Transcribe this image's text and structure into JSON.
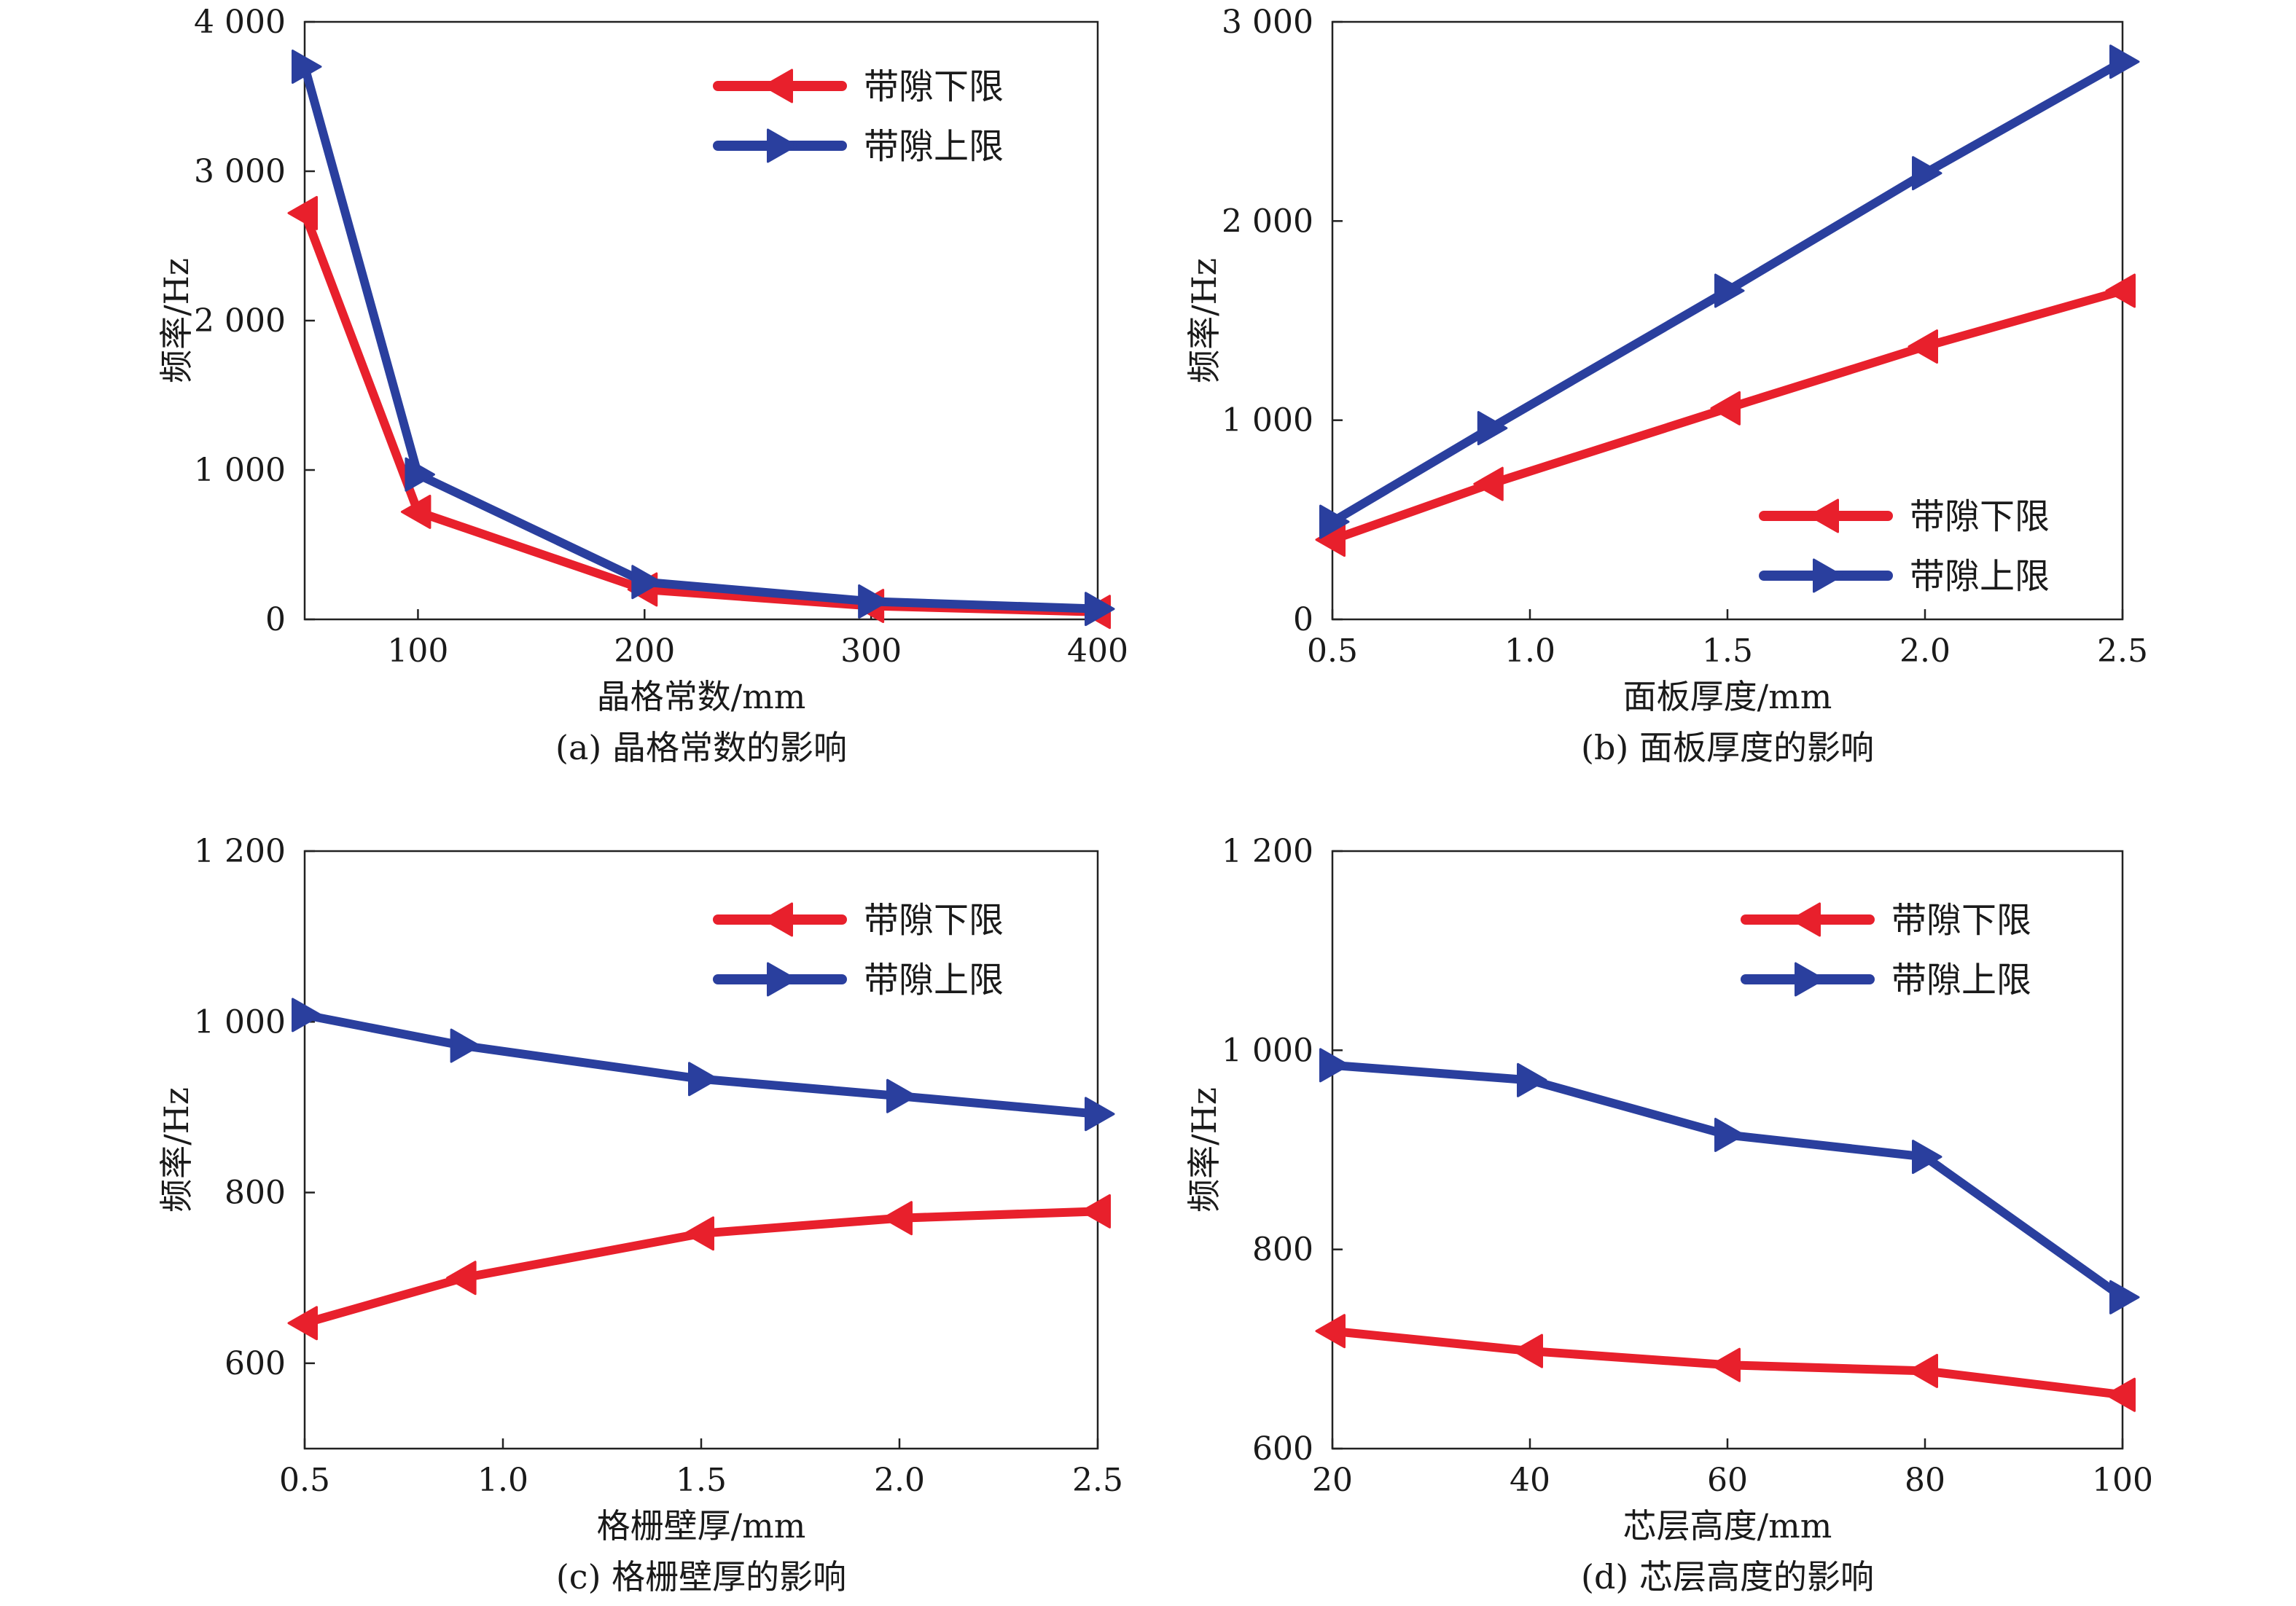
{
  "colors": {
    "lower": "#e8202c",
    "upper": "#2a3f9e",
    "axis": "#222222"
  },
  "chart_data": [
    {
      "type": "line",
      "caption": "(a) 晶格常数的影响",
      "xlabel": "晶格常数/mm",
      "ylabel": "频率/Hz",
      "xlim": [
        50,
        400
      ],
      "ylim": [
        0,
        4000
      ],
      "xticks": [
        100,
        200,
        300,
        400
      ],
      "xtick_labels": [
        "100",
        "200",
        "300",
        "400"
      ],
      "yticks": [
        0,
        1000,
        2000,
        3000,
        4000
      ],
      "ytick_labels": [
        "0",
        "1 000",
        "2 000",
        "3 000",
        "4 000"
      ],
      "legend_position": "top-right",
      "x": [
        50,
        100,
        200,
        300,
        400
      ],
      "series": [
        {
          "name": "带隙下限",
          "key": "lower",
          "marker": "left-triangle",
          "values": [
            2720,
            720,
            200,
            90,
            50
          ]
        },
        {
          "name": "带隙上限",
          "key": "upper",
          "marker": "right-triangle",
          "values": [
            3700,
            970,
            250,
            120,
            70
          ]
        }
      ]
    },
    {
      "type": "line",
      "caption": "(b) 面板厚度的影响",
      "xlabel": "面板厚度/mm",
      "ylabel": "频率/Hz",
      "xlim": [
        0.5,
        2.5
      ],
      "ylim": [
        0,
        3000
      ],
      "xticks": [
        0.5,
        1.0,
        1.5,
        2.0,
        2.5
      ],
      "xtick_labels": [
        "0.5",
        "1.0",
        "1.5",
        "2.0",
        "2.5"
      ],
      "yticks": [
        0,
        1000,
        2000,
        3000
      ],
      "ytick_labels": [
        "0",
        "1 000",
        "2 000",
        "3 000"
      ],
      "legend_position": "bottom-right",
      "x": [
        0.5,
        0.9,
        1.5,
        2.0,
        2.5
      ],
      "series": [
        {
          "name": "带隙下限",
          "key": "lower",
          "marker": "left-triangle",
          "values": [
            400,
            680,
            1060,
            1370,
            1650
          ]
        },
        {
          "name": "带隙上限",
          "key": "upper",
          "marker": "right-triangle",
          "values": [
            490,
            960,
            1650,
            2240,
            2800
          ]
        }
      ]
    },
    {
      "type": "line",
      "caption": "(c) 格栅壁厚的影响",
      "xlabel": "格栅壁厚/mm",
      "ylabel": "频率/Hz",
      "xlim": [
        0.5,
        2.5
      ],
      "ylim": [
        500,
        1200
      ],
      "xticks": [
        0.5,
        1.0,
        1.5,
        2.0,
        2.5
      ],
      "xtick_labels": [
        "0.5",
        "1.0",
        "1.5",
        "2.0",
        "2.5"
      ],
      "yticks": [
        600,
        800,
        1000,
        1200
      ],
      "ytick_labels": [
        "600",
        "800",
        "1 000",
        "1 200"
      ],
      "legend_position": "top-right",
      "x": [
        0.5,
        0.9,
        1.5,
        2.0,
        2.5
      ],
      "series": [
        {
          "name": "带隙下限",
          "key": "lower",
          "marker": "left-triangle",
          "values": [
            647,
            700,
            752,
            770,
            778
          ]
        },
        {
          "name": "带隙上限",
          "key": "upper",
          "marker": "right-triangle",
          "values": [
            1008,
            972,
            933,
            913,
            892
          ]
        }
      ]
    },
    {
      "type": "line",
      "caption": "(d) 芯层高度的影响",
      "xlabel": "芯层高度/mm",
      "ylabel": "频率/Hz",
      "xlim": [
        20,
        100
      ],
      "ylim": [
        600,
        1200
      ],
      "xticks": [
        20,
        40,
        60,
        80,
        100
      ],
      "xtick_labels": [
        "20",
        "40",
        "60",
        "80",
        "100"
      ],
      "yticks": [
        600,
        800,
        1000,
        1200
      ],
      "ytick_labels": [
        "600",
        "800",
        "1 000",
        "1 200"
      ],
      "legend_position": "top-right",
      "x": [
        20,
        40,
        60,
        80,
        100
      ],
      "series": [
        {
          "name": "带隙下限",
          "key": "lower",
          "marker": "left-triangle",
          "values": [
            718,
            698,
            684,
            678,
            654
          ]
        },
        {
          "name": "带隙上限",
          "key": "upper",
          "marker": "right-triangle",
          "values": [
            985,
            970,
            915,
            893,
            752
          ]
        }
      ]
    }
  ]
}
